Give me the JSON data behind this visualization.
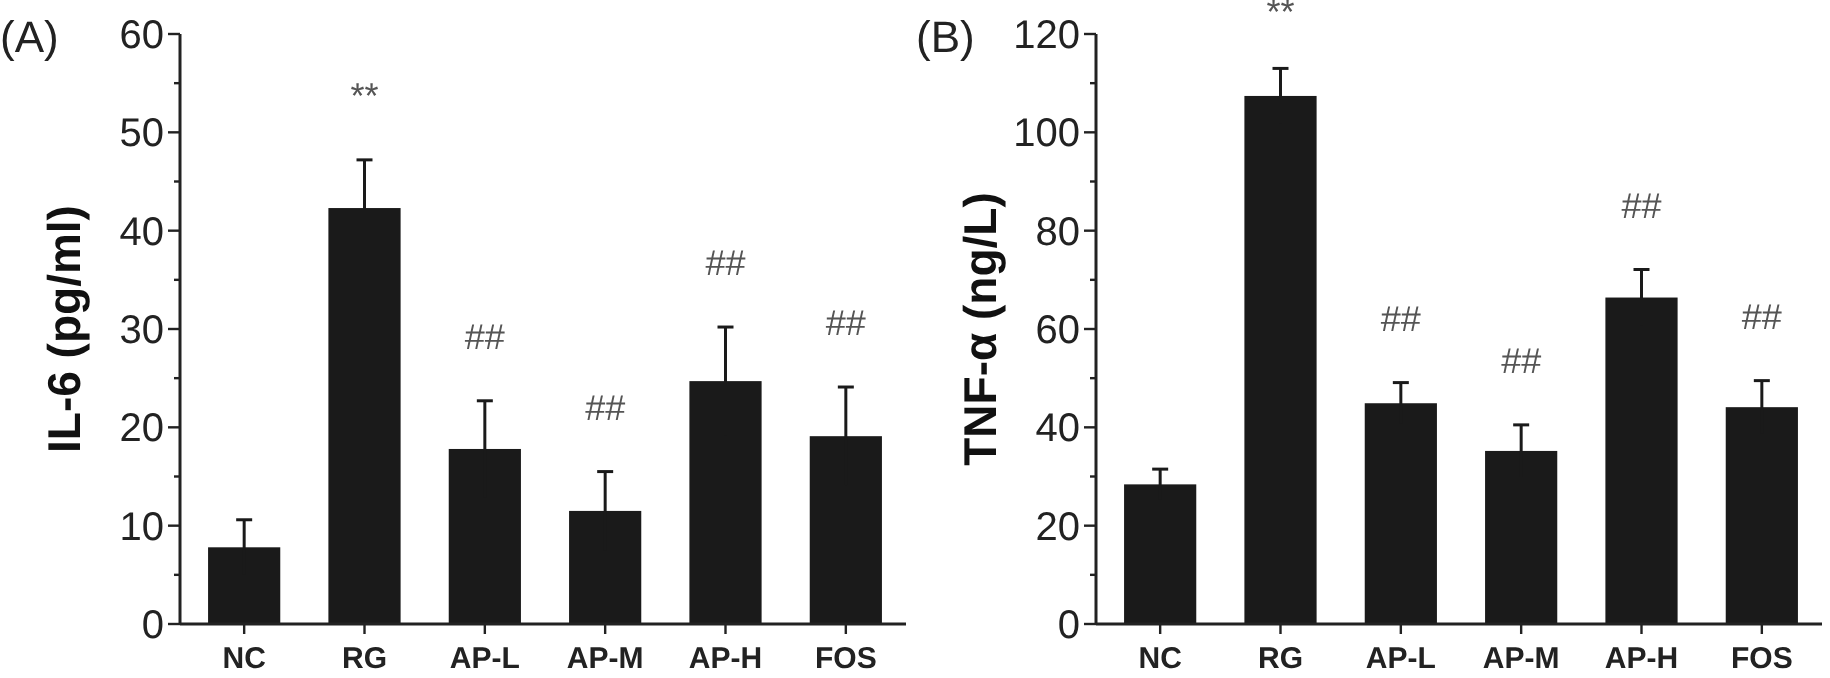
{
  "chart_data": [
    {
      "type": "bar",
      "title": "(A)",
      "ylabel": "IL-6 (pg/ml)",
      "categories": [
        "NC",
        "RG",
        "AP-L",
        "AP-M",
        "AP-H",
        "FOS"
      ],
      "values": [
        7.8,
        42.3,
        17.8,
        11.5,
        24.7,
        19.1
      ],
      "errors": [
        2.8,
        4.9,
        4.9,
        4.0,
        5.5,
        5.0
      ],
      "color": "#1a1a1a",
      "ylim": [
        0,
        60
      ],
      "yticks": [
        0,
        {
          "value": 5,
          "label": null
        },
        10,
        {
          "value": 15,
          "label": null
        },
        20,
        {
          "value": 25,
          "label": null
        },
        30,
        {
          "value": 35,
          "label": null
        },
        40,
        {
          "value": 45,
          "label": null
        },
        50,
        {
          "value": 55,
          "label": null
        },
        60
      ],
      "annotations": [
        "**",
        "##",
        "##",
        "##",
        "##"
      ]
    },
    {
      "type": "bar",
      "title": "(B)",
      "ylabel": "TNF-α (ng/L)",
      "categories": [
        "NC",
        "RG",
        "AP-L",
        "AP-M",
        "AP-H",
        "FOS"
      ],
      "values": [
        28.4,
        107.4,
        44.9,
        35.2,
        66.4,
        44.1
      ],
      "errors": [
        3.1,
        5.6,
        4.2,
        5.3,
        5.7,
        5.4
      ],
      "color": "#1a1a1a",
      "ylim": [
        0,
        120
      ],
      "yticks": [
        0,
        {
          "value": 10,
          "label": null
        },
        20,
        {
          "value": 30,
          "label": null
        },
        40,
        {
          "value": 50,
          "label": null
        },
        60,
        {
          "value": 70,
          "label": null
        },
        80,
        {
          "value": 90,
          "label": null
        },
        100,
        {
          "value": 110,
          "label": null
        },
        120
      ],
      "annotations": [
        "**",
        "##",
        "##",
        "##",
        "##"
      ]
    }
  ]
}
